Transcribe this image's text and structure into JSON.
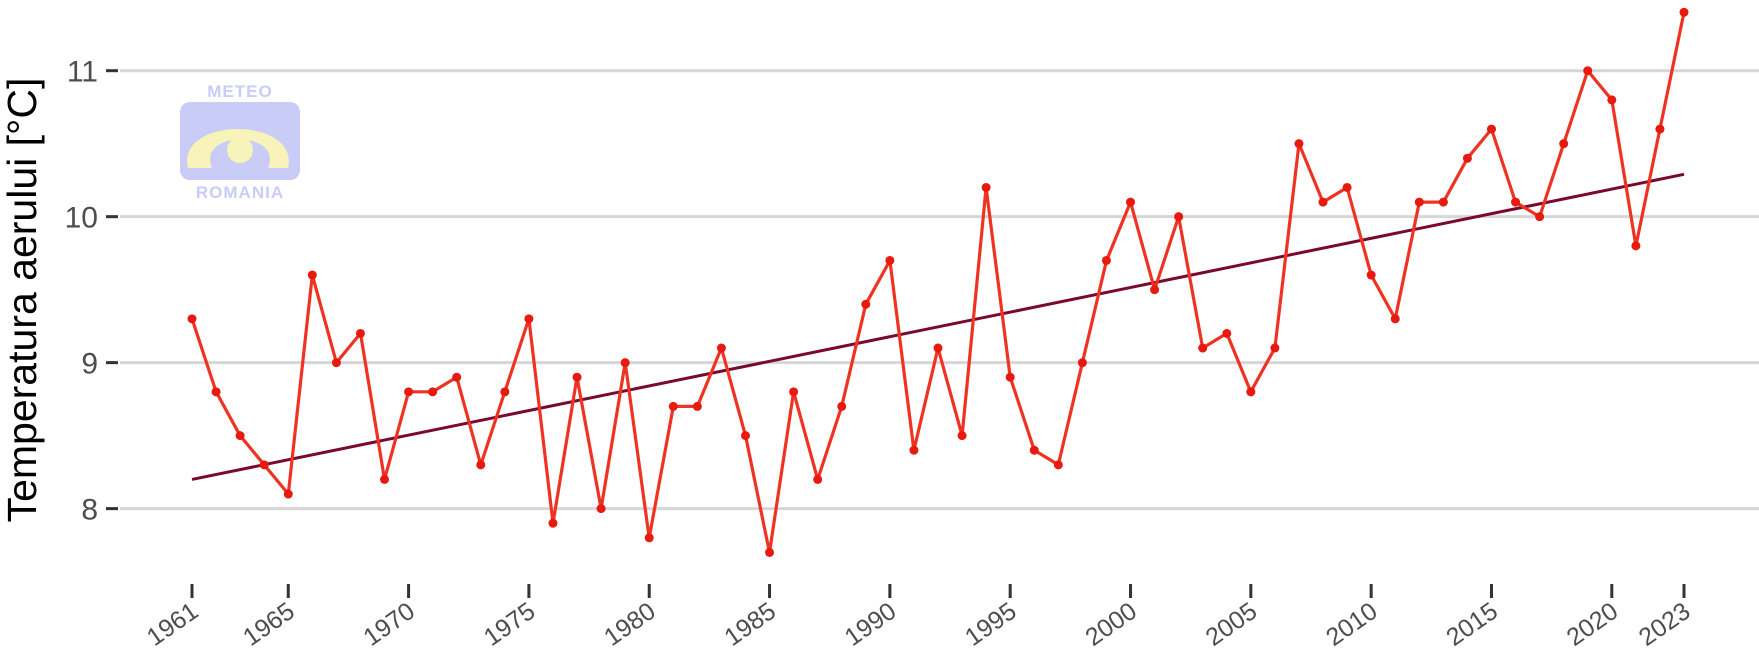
{
  "chart_data": {
    "type": "line",
    "title": "",
    "xlabel": "",
    "ylabel": "Temperatura aerului [°C]",
    "x": [
      1961,
      1962,
      1963,
      1964,
      1965,
      1966,
      1967,
      1968,
      1969,
      1970,
      1971,
      1972,
      1973,
      1974,
      1975,
      1976,
      1977,
      1978,
      1979,
      1980,
      1981,
      1982,
      1983,
      1984,
      1985,
      1986,
      1987,
      1988,
      1989,
      1990,
      1991,
      1992,
      1993,
      1994,
      1995,
      1996,
      1997,
      1998,
      1999,
      2000,
      2001,
      2002,
      2003,
      2004,
      2005,
      2006,
      2007,
      2008,
      2009,
      2010,
      2011,
      2012,
      2013,
      2014,
      2015,
      2016,
      2017,
      2018,
      2019,
      2020,
      2021,
      2022,
      2023
    ],
    "series": [
      {
        "values": [
          9.3,
          8.8,
          8.5,
          8.3,
          8.1,
          9.6,
          9.0,
          9.2,
          8.2,
          8.8,
          8.8,
          8.9,
          8.3,
          8.8,
          9.3,
          7.9,
          8.9,
          8.0,
          9.0,
          7.8,
          8.7,
          8.7,
          9.1,
          8.5,
          7.7,
          8.8,
          8.2,
          8.7,
          9.4,
          9.7,
          8.4,
          9.1,
          8.5,
          10.2,
          8.9,
          8.4,
          8.3,
          9.0,
          9.7,
          10.1,
          9.5,
          10.0,
          9.1,
          9.2,
          8.8,
          9.1,
          10.5,
          10.1,
          10.2,
          9.6,
          9.3,
          10.1,
          10.1,
          10.4,
          10.6,
          10.1,
          10.0,
          10.5,
          11.0,
          10.8,
          9.8,
          10.6,
          11.4
        ]
      }
    ],
    "trend": {
      "x": [
        1961,
        2023
      ],
      "y": [
        8.2,
        10.29
      ]
    },
    "xticks": [
      "1961",
      "1965",
      "1970",
      "1975",
      "1980",
      "1985",
      "1990",
      "1995",
      "2000",
      "2005",
      "2010",
      "2015",
      "2020",
      "2023"
    ],
    "yticks": [
      "8",
      "9",
      "10",
      "11"
    ],
    "xlim": [
      1961,
      2023
    ],
    "ylim": [
      7.6,
      11.45
    ],
    "grid": true,
    "legend": "none",
    "colors": {
      "line": "#ee3322",
      "points": "#e8190f",
      "trend": "#7a0a2a",
      "grid": "#d6d6d6"
    }
  },
  "logo": {
    "top": "METEO",
    "bottom": "ROMANIA"
  }
}
